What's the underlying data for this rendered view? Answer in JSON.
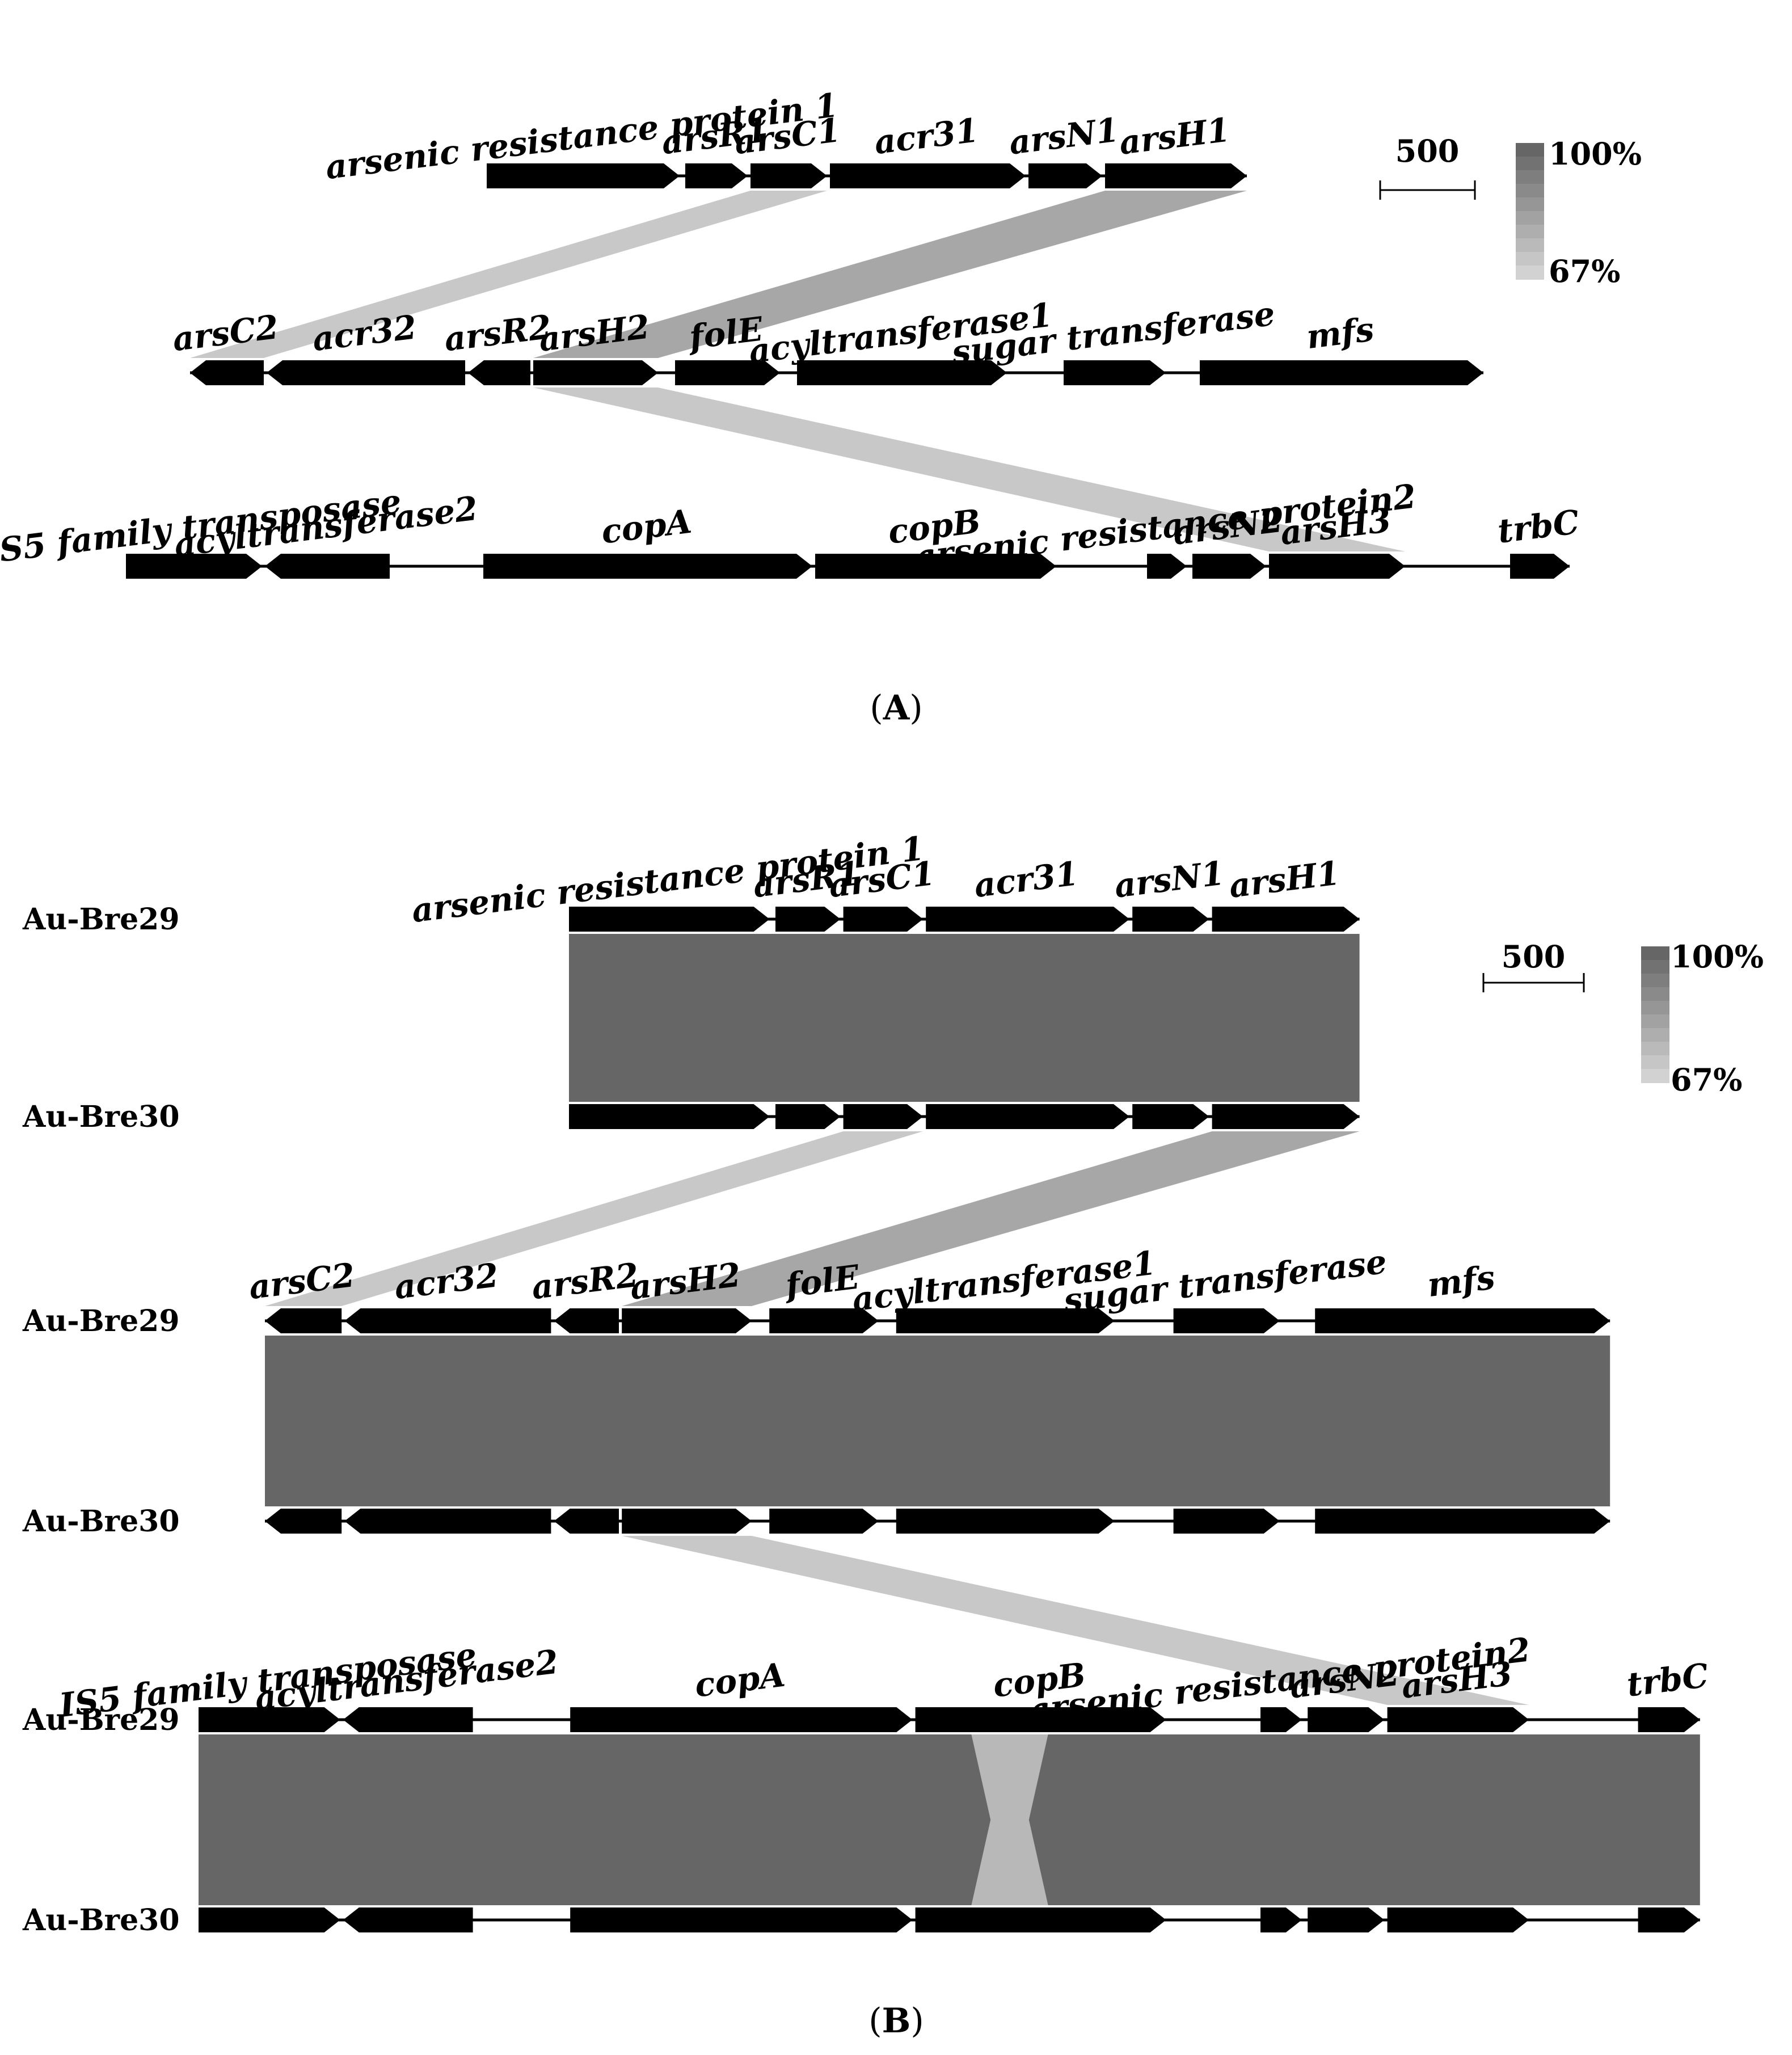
{
  "panels": [
    {
      "id": "A",
      "label": "A",
      "show_strain_names": false,
      "rows": [
        {
          "strain": "",
          "genes": [
            {
              "name": "arsenic resistance protein 1",
              "start": 0,
              "end": 340,
              "strand": "+"
            },
            {
              "name": "arsR1",
              "start": 350,
              "end": 460,
              "strand": "+"
            },
            {
              "name": "arsC1",
              "start": 465,
              "end": 600,
              "strand": "+"
            },
            {
              "name": "acr31",
              "start": 605,
              "end": 950,
              "strand": "+"
            },
            {
              "name": "arsN1",
              "start": 955,
              "end": 1085,
              "strand": "+"
            },
            {
              "name": "arsH1",
              "start": 1090,
              "end": 1340,
              "strand": "+"
            }
          ]
        },
        {
          "strain": "",
          "genes": [
            {
              "name": "arsC2",
              "start": 0,
              "end": 130,
              "strand": "-"
            },
            {
              "name": "acr32",
              "start": 135,
              "end": 485,
              "strand": "-"
            },
            {
              "name": "arsR2",
              "start": 490,
              "end": 600,
              "strand": "-"
            },
            {
              "name": "arsH2",
              "start": 605,
              "end": 825,
              "strand": "+"
            },
            {
              "name": "folE",
              "start": 855,
              "end": 1040,
              "strand": "+"
            },
            {
              "name": "acyltransferase1",
              "start": 1070,
              "end": 1440,
              "strand": "+"
            },
            {
              "name": "sugar transferase",
              "start": 1540,
              "end": 1720,
              "strand": "+"
            },
            {
              "name": "mfs",
              "start": 1780,
              "end": 2280,
              "strand": "+"
            }
          ]
        },
        {
          "strain": "",
          "genes": [
            {
              "name": "IS5 family transposase",
              "start": 0,
              "end": 240,
              "strand": "+"
            },
            {
              "name": "acyltransferase2",
              "start": 245,
              "end": 465,
              "strand": "-"
            },
            {
              "name": "copA",
              "start": 630,
              "end": 1210,
              "strand": "+"
            },
            {
              "name": "copB",
              "start": 1215,
              "end": 1640,
              "strand": "+"
            },
            {
              "name": "arsenic resistance protein2",
              "start": 1800,
              "end": 1870,
              "strand": "+"
            },
            {
              "name": "arsN2",
              "start": 1880,
              "end": 2010,
              "strand": "+"
            },
            {
              "name": "arsH3",
              "start": 2015,
              "end": 2255,
              "strand": "+"
            },
            {
              "name": "trbC",
              "start": 2440,
              "end": 2545,
              "strand": "+"
            }
          ]
        }
      ],
      "links": [
        {
          "from_row": 0,
          "from": [
            465,
            600
          ],
          "to_row": 1,
          "to": [
            0,
            130
          ],
          "identity": 70
        },
        {
          "from_row": 0,
          "from": [
            1090,
            1340
          ],
          "to_row": 1,
          "to": [
            605,
            825
          ],
          "identity": 80
        },
        {
          "from_row": 1,
          "from": [
            605,
            825
          ],
          "to_row": 2,
          "to": [
            2015,
            2255
          ],
          "identity": 70
        }
      ]
    },
    {
      "id": "B",
      "label": "B",
      "show_strain_names": true,
      "rows": [
        {
          "strain": "Au-Bre29",
          "copy_of": "A.0"
        },
        {
          "strain": "Au-Bre30",
          "copy_of": "A.0",
          "hide_labels": true
        },
        {
          "strain": "Au-Bre29",
          "copy_of": "A.1"
        },
        {
          "strain": "Au-Bre30",
          "copy_of": "A.1",
          "hide_labels": true
        },
        {
          "strain": "Au-Bre29",
          "copy_of": "A.2"
        },
        {
          "strain": "Au-Bre30",
          "copy_of": "A.2",
          "hide_labels": true
        }
      ],
      "links": [
        {
          "from_row": 0,
          "from": [
            0,
            1340
          ],
          "to_row": 1,
          "to": [
            0,
            1340
          ],
          "identity": 100
        },
        {
          "from_row": 1,
          "from": [
            465,
            600
          ],
          "to_row": 2,
          "to": [
            0,
            130
          ],
          "identity": 70
        },
        {
          "from_row": 1,
          "from": [
            1090,
            1340
          ],
          "to_row": 2,
          "to": [
            605,
            825
          ],
          "identity": 80
        },
        {
          "from_row": 2,
          "from": [
            0,
            2280
          ],
          "to_row": 3,
          "to": [
            0,
            2280
          ],
          "identity": 100
        },
        {
          "from_row": 3,
          "from": [
            605,
            825
          ],
          "to_row": 4,
          "to": [
            2015,
            2255
          ],
          "identity": 70
        },
        {
          "from_row": 4,
          "from": [
            0,
            2545
          ],
          "to_row": 5,
          "to": [
            0,
            2545
          ],
          "identity": 100
        },
        {
          "from_row": 4,
          "from": [
            1310,
            1375
          ],
          "to_row": 5,
          "to": [
            1375,
            1440
          ],
          "identity": 75
        },
        {
          "from_row": 4,
          "from": [
            1375,
            1440
          ],
          "to_row": 5,
          "to": [
            1310,
            1375
          ],
          "identity": 75
        }
      ]
    }
  ],
  "scale_bar": {
    "label": "500",
    "length_bp": 500
  },
  "identity_legend": {
    "max_label": "100%",
    "min_label": "67%",
    "max": 100,
    "min": 67
  },
  "colors": {
    "gene": "#000000",
    "link_high": "#666666",
    "link_low": "#d2d2d2",
    "background": "#ffffff"
  }
}
